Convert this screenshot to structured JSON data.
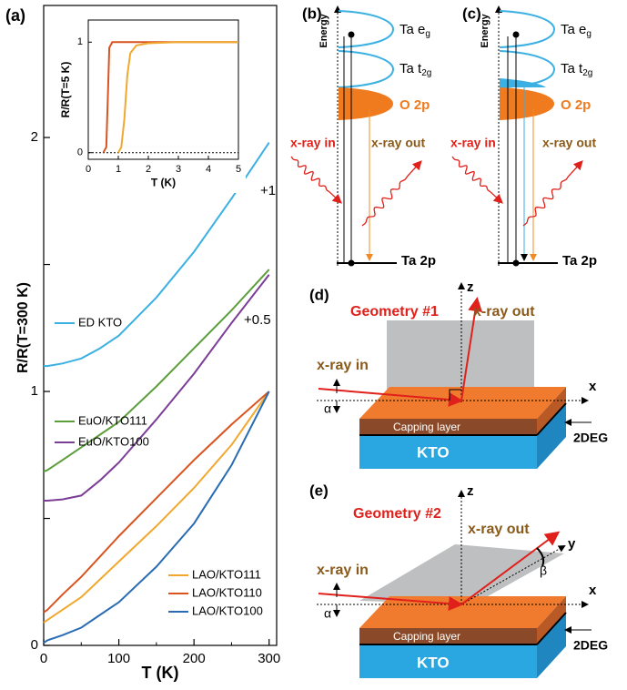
{
  "chart_data": [
    {
      "type": "line",
      "panel_label": "(a)",
      "xlabel": "T (K)",
      "ylabel": "R/R(T=300 K)",
      "xlim": [
        0,
        310
      ],
      "ylim": [
        0,
        2.52
      ],
      "xticks": [
        0,
        100,
        200,
        300
      ],
      "yticks": [
        0,
        1,
        2
      ],
      "xticks_minor": [
        50,
        150,
        250
      ],
      "yticks_minor": [
        0.5,
        1.5
      ],
      "x": [
        0,
        5,
        25,
        50,
        75,
        100,
        150,
        200,
        250,
        300
      ],
      "series": [
        {
          "name": "ED KTO",
          "color": "#3bb0e3",
          "values": [
            1.1,
            1.1,
            1.11,
            1.13,
            1.17,
            1.22,
            1.37,
            1.55,
            1.76,
            1.98
          ]
        },
        {
          "name": "EuO/KTO111",
          "color": "#5c9e3c",
          "values": [
            0.685,
            0.69,
            0.73,
            0.78,
            0.83,
            0.88,
            1.02,
            1.17,
            1.32,
            1.48
          ]
        },
        {
          "name": "EuO/KTO100",
          "color": "#7b3d96",
          "values": [
            0.57,
            0.57,
            0.575,
            0.59,
            0.65,
            0.72,
            0.89,
            1.07,
            1.27,
            1.46
          ]
        },
        {
          "name": "LAO/KTO111",
          "color": "#f0a82e",
          "values": [
            0.09,
            0.1,
            0.14,
            0.19,
            0.26,
            0.33,
            0.47,
            0.62,
            0.79,
            1.0
          ]
        },
        {
          "name": "LAO/KTO110",
          "color": "#d9541e",
          "values": [
            0.13,
            0.14,
            0.2,
            0.27,
            0.35,
            0.43,
            0.58,
            0.73,
            0.87,
            1.0
          ]
        },
        {
          "name": "LAO/KTO100",
          "color": "#2a6cb3",
          "values": [
            0.01,
            0.02,
            0.04,
            0.07,
            0.12,
            0.17,
            0.31,
            0.48,
            0.71,
            1.0
          ]
        }
      ],
      "annotations": [
        "+1",
        "+0.5"
      ]
    },
    {
      "type": "line",
      "xlabel": "T (K)",
      "ylabel": "R/R(T=5 K)",
      "xlim": [
        0,
        5
      ],
      "ylim": [
        -0.06,
        1.2
      ],
      "xticks": [
        0,
        1,
        2,
        3,
        4,
        5
      ],
      "yticks": [
        0,
        1
      ],
      "reference_line": 0,
      "series": [
        {
          "color": "#d9541e",
          "x": [
            0.5,
            0.6,
            0.65,
            0.7,
            0.8,
            1,
            2,
            3,
            4,
            5
          ],
          "values": [
            0,
            0.05,
            0.5,
            0.95,
            1.0,
            1.0,
            1.0,
            1.0,
            1.0,
            1.0
          ]
        },
        {
          "color": "#f0a82e",
          "x": [
            1.0,
            1.1,
            1.2,
            1.3,
            1.4,
            1.6,
            2,
            3,
            4,
            5
          ],
          "values": [
            0,
            0.05,
            0.3,
            0.7,
            0.9,
            0.97,
            0.99,
            1.0,
            1.0,
            1.0
          ]
        }
      ]
    }
  ],
  "panels": {
    "b": {
      "label": "(b)",
      "energy": "Energy",
      "eg": {
        "main": "Ta e",
        "sub": "g"
      },
      "t2g": {
        "main": "Ta t",
        "sub": "2g"
      },
      "o2p": "O 2p",
      "core": "Ta 2p",
      "xray_in": "x-ray in",
      "xray_out": "x-ray out"
    },
    "c": {
      "label": "(c)",
      "energy": "Energy",
      "eg": {
        "main": "Ta e",
        "sub": "g"
      },
      "t2g": {
        "main": "Ta t",
        "sub": "2g"
      },
      "o2p": "O 2p",
      "core": "Ta 2p",
      "xray_in": "x-ray in",
      "xray_out": "x-ray out"
    },
    "d": {
      "label": "(d)",
      "geometry": "Geometry #1",
      "xray_out": "x-ray out",
      "xray_in": "x-ray in",
      "z": "z",
      "x": "x",
      "alpha": "α",
      "capping": "Capping layer",
      "substrate": "KTO",
      "interface": "2DEG"
    },
    "e": {
      "label": "(e)",
      "geometry": "Geometry #2",
      "xray_out": "x-ray out",
      "xray_in": "x-ray in",
      "z": "z",
      "x": "x",
      "y": "y",
      "alpha": "α",
      "beta": "β",
      "capping": "Capping layer",
      "substrate": "KTO",
      "interface": "2DEG"
    }
  }
}
